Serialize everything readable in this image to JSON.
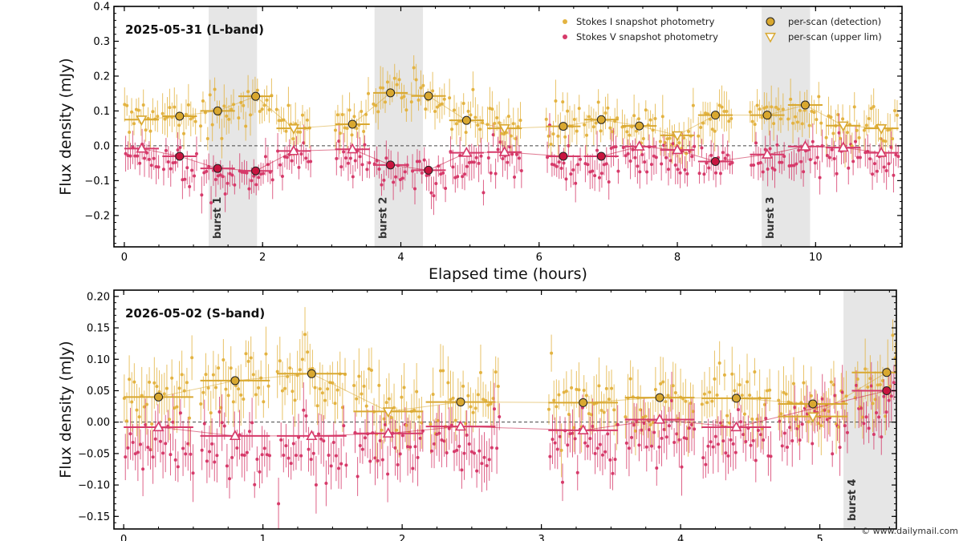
{
  "watermark": "© www.dailymail.com",
  "colors": {
    "stokes_i": "#E3B341",
    "stokes_v": "#D63A6A",
    "scan_i_fill": "#D9A830",
    "scan_v_fill": "#C8153F",
    "burst_shade": "#E6E6E6",
    "zero_line": "#444444"
  },
  "legend": {
    "i_label": "Stokes I  snapshot photometry",
    "v_label": "Stokes V  snapshot photometry",
    "det_label": "per-scan (detection)",
    "ul_label": "per-scan (upper lim)"
  },
  "chart_data": [
    {
      "type": "scatter",
      "title": "2025-05-31 (L-band)",
      "xlabel": "Elapsed time (hours)",
      "ylabel": "Flux density (mJy)",
      "xlim": [
        -0.15,
        11.25
      ],
      "ylim": [
        -0.29,
        0.4
      ],
      "xticks": [
        0,
        2,
        4,
        6,
        8,
        10
      ],
      "yticks": [
        -0.2,
        -0.1,
        0.0,
        0.1,
        0.2,
        0.3,
        0.4
      ],
      "ytick_labels": [
        "−0.2",
        "−0.1",
        "0.0",
        "0.1",
        "0.2",
        "0.3",
        "0.4"
      ],
      "grid": false,
      "legend_position": "top-right",
      "bursts": [
        {
          "label": "burst 1",
          "x0": 1.22,
          "x1": 1.92
        },
        {
          "label": "burst 2",
          "x0": 3.62,
          "x1": 4.32
        },
        {
          "label": "burst 3",
          "x0": 9.22,
          "x1": 9.92
        }
      ],
      "segments": [
        [
          0.0,
          0.5
        ],
        [
          0.55,
          1.05
        ],
        [
          1.1,
          1.6
        ],
        [
          1.65,
          2.15
        ],
        [
          2.2,
          2.7
        ],
        [
          3.05,
          3.55
        ],
        [
          3.6,
          4.1
        ],
        [
          4.15,
          4.65
        ],
        [
          4.7,
          5.2
        ],
        [
          5.25,
          5.75
        ],
        [
          6.1,
          6.6
        ],
        [
          6.65,
          7.15
        ],
        [
          7.2,
          7.7
        ],
        [
          7.75,
          8.25
        ],
        [
          8.3,
          8.8
        ],
        [
          9.05,
          9.55
        ],
        [
          9.6,
          10.1
        ],
        [
          10.15,
          10.65
        ],
        [
          10.7,
          11.2
        ]
      ],
      "stokes_i_scans": [
        {
          "x": 0.25,
          "y": 0.075,
          "upper": true
        },
        {
          "x": 0.8,
          "y": 0.085,
          "upper": false
        },
        {
          "x": 1.35,
          "y": 0.1,
          "upper": false
        },
        {
          "x": 1.9,
          "y": 0.142,
          "upper": false
        },
        {
          "x": 2.45,
          "y": 0.05,
          "upper": true
        },
        {
          "x": 3.3,
          "y": 0.062,
          "upper": false
        },
        {
          "x": 3.85,
          "y": 0.152,
          "upper": false
        },
        {
          "x": 4.4,
          "y": 0.143,
          "upper": false
        },
        {
          "x": 4.95,
          "y": 0.073,
          "upper": false
        },
        {
          "x": 5.5,
          "y": 0.05,
          "upper": true
        },
        {
          "x": 6.35,
          "y": 0.056,
          "upper": false
        },
        {
          "x": 6.9,
          "y": 0.075,
          "upper": false
        },
        {
          "x": 7.45,
          "y": 0.057,
          "upper": false
        },
        {
          "x": 8.0,
          "y": 0.03,
          "upper": true
        },
        {
          "x": 8.55,
          "y": 0.088,
          "upper": false
        },
        {
          "x": 9.3,
          "y": 0.088,
          "upper": false
        },
        {
          "x": 9.85,
          "y": 0.117,
          "upper": false
        },
        {
          "x": 10.4,
          "y": 0.058,
          "upper": true
        },
        {
          "x": 10.95,
          "y": 0.05,
          "upper": true
        }
      ],
      "stokes_v_scans": [
        {
          "x": 0.25,
          "y": -0.008,
          "upper": true
        },
        {
          "x": 0.8,
          "y": -0.03,
          "upper": false
        },
        {
          "x": 1.35,
          "y": -0.065,
          "upper": false
        },
        {
          "x": 1.9,
          "y": -0.072,
          "upper": false
        },
        {
          "x": 2.45,
          "y": -0.015,
          "upper": true
        },
        {
          "x": 3.3,
          "y": -0.01,
          "upper": true
        },
        {
          "x": 3.85,
          "y": -0.055,
          "upper": false
        },
        {
          "x": 4.4,
          "y": -0.07,
          "upper": false
        },
        {
          "x": 4.95,
          "y": -0.02,
          "upper": true
        },
        {
          "x": 5.5,
          "y": -0.018,
          "upper": true
        },
        {
          "x": 6.35,
          "y": -0.03,
          "upper": false
        },
        {
          "x": 6.9,
          "y": -0.03,
          "upper": false
        },
        {
          "x": 7.45,
          "y": -0.002,
          "upper": true
        },
        {
          "x": 8.0,
          "y": -0.012,
          "upper": true
        },
        {
          "x": 8.55,
          "y": -0.045,
          "upper": false
        },
        {
          "x": 9.3,
          "y": -0.025,
          "upper": true
        },
        {
          "x": 9.85,
          "y": -0.002,
          "upper": true
        },
        {
          "x": 10.4,
          "y": -0.005,
          "upper": true
        },
        {
          "x": 10.95,
          "y": -0.02,
          "upper": true
        }
      ]
    },
    {
      "type": "scatter",
      "title": "2026-05-02 (S-band)",
      "xlabel": "",
      "ylabel": "Flux density (mJy)",
      "xlim": [
        -0.07,
        5.55
      ],
      "ylim": [
        -0.17,
        0.21
      ],
      "xticks": [
        0,
        1,
        2,
        3,
        4,
        5
      ],
      "yticks": [
        -0.15,
        -0.1,
        -0.05,
        0.0,
        0.05,
        0.1,
        0.15,
        0.2
      ],
      "ytick_labels": [
        "−0.15",
        "−0.10",
        "−0.05",
        "0.00",
        "0.05",
        "0.10",
        "0.15",
        "0.20"
      ],
      "grid": false,
      "bursts": [
        {
          "label": "burst 4",
          "x0": 5.17,
          "x1": 5.55
        }
      ],
      "segments": [
        [
          0.0,
          0.5
        ],
        [
          0.55,
          1.05
        ],
        [
          1.1,
          1.6
        ],
        [
          1.65,
          2.15
        ],
        [
          2.2,
          2.7
        ],
        [
          3.05,
          3.55
        ],
        [
          3.6,
          4.1
        ],
        [
          4.15,
          4.65
        ],
        [
          4.7,
          5.2
        ],
        [
          5.25,
          5.55
        ]
      ],
      "stokes_i_scans": [
        {
          "x": 0.25,
          "y": 0.04,
          "upper": false
        },
        {
          "x": 0.8,
          "y": 0.066,
          "upper": false
        },
        {
          "x": 1.35,
          "y": 0.077,
          "upper": false
        },
        {
          "x": 1.9,
          "y": 0.017,
          "upper": true
        },
        {
          "x": 2.42,
          "y": 0.032,
          "upper": false
        },
        {
          "x": 3.3,
          "y": 0.031,
          "upper": false
        },
        {
          "x": 3.85,
          "y": 0.039,
          "upper": false
        },
        {
          "x": 4.4,
          "y": 0.038,
          "upper": false
        },
        {
          "x": 4.95,
          "y": 0.029,
          "upper": false
        },
        {
          "x": 4.95,
          "y": 0.009,
          "upper": true
        },
        {
          "x": 5.48,
          "y": 0.079,
          "upper": false
        }
      ],
      "stokes_v_scans": [
        {
          "x": 0.25,
          "y": -0.008,
          "upper": true
        },
        {
          "x": 0.8,
          "y": -0.022,
          "upper": true
        },
        {
          "x": 1.35,
          "y": -0.022,
          "upper": true
        },
        {
          "x": 1.9,
          "y": -0.018,
          "upper": true
        },
        {
          "x": 2.42,
          "y": -0.007,
          "upper": true
        },
        {
          "x": 3.3,
          "y": -0.013,
          "upper": true
        },
        {
          "x": 3.85,
          "y": 0.004,
          "upper": true
        },
        {
          "x": 4.4,
          "y": -0.008,
          "upper": true
        },
        {
          "x": 5.48,
          "y": 0.05,
          "upper": false
        }
      ]
    }
  ]
}
